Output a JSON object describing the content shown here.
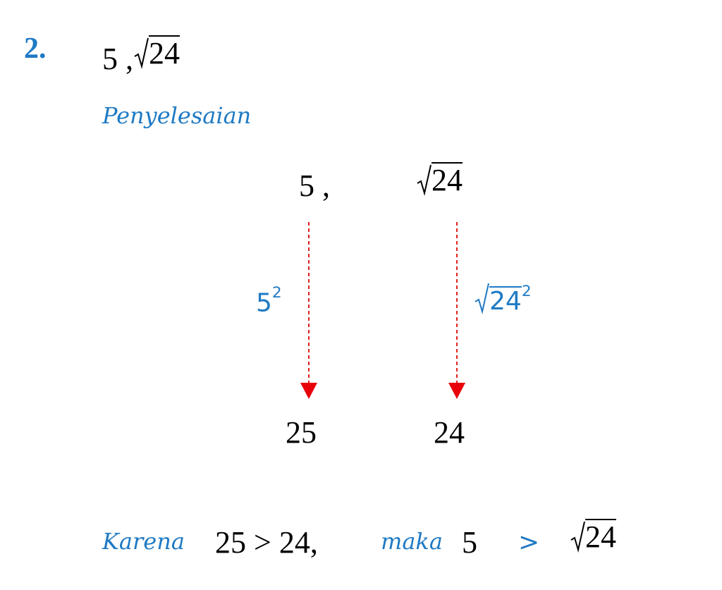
{
  "problem": {
    "number": "2.",
    "first": "5",
    "separator": ",",
    "radicand": "24"
  },
  "heading": "Penyelesaian",
  "steps": [
    {
      "start": "5 ,",
      "operation_base": "5",
      "operation_exponent": "2",
      "result": "25"
    },
    {
      "start_radicand": "24",
      "operation_radicand": "24",
      "operation_exponent": "2",
      "result": "24"
    }
  ],
  "conclusion": {
    "because": "Karena",
    "comparison": "25 > 24,",
    "then": "maka",
    "left": "5",
    "relation": ">",
    "right_radicand": "24"
  }
}
